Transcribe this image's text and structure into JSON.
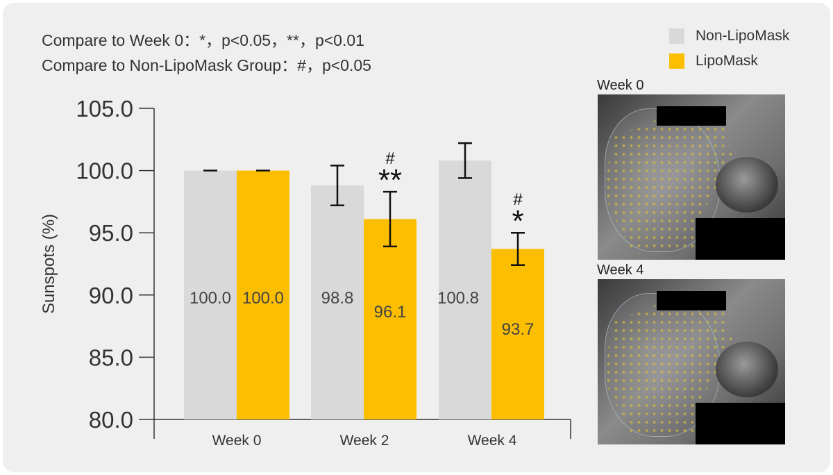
{
  "notes": {
    "line1": "Compare to Week 0：*，p<0.05，**，p<0.01",
    "line2": "Compare to Non-LipoMask Group：#，p<0.05"
  },
  "legend": [
    {
      "label": "Non-LipoMask",
      "color": "#d8d9d8"
    },
    {
      "label": "LipoMask",
      "color": "#fbbe00"
    }
  ],
  "photos": [
    {
      "label": "Week 0"
    },
    {
      "label": "Week 4"
    }
  ],
  "chart_data": {
    "type": "bar",
    "ylabel": "Sunspots (%)",
    "xlabel": "",
    "ylim": [
      80,
      105
    ],
    "yticks": [
      80,
      85,
      90,
      95,
      100,
      105
    ],
    "ytick_labels": [
      "80.0",
      "85.0",
      "90.0",
      "95.0",
      "100.0",
      "105.0"
    ],
    "categories": [
      "Week 0",
      "Week 2",
      "Week 4"
    ],
    "series": [
      {
        "name": "Non-LipoMask",
        "color": "#d8d9d8",
        "values": [
          100.0,
          98.8,
          100.8
        ],
        "value_labels": [
          "100.0",
          "98.8",
          "100.8"
        ],
        "error": [
          0.0,
          1.6,
          1.4
        ],
        "significance": [
          "",
          "",
          ""
        ],
        "significance_group": [
          "",
          "",
          ""
        ]
      },
      {
        "name": "LipoMask",
        "color": "#fbbe00",
        "values": [
          100.0,
          96.1,
          93.7
        ],
        "value_labels": [
          "100.0",
          "96.1",
          "93.7"
        ],
        "error": [
          0.0,
          2.2,
          1.3
        ],
        "significance": [
          "",
          "**",
          "*"
        ],
        "significance_group": [
          "",
          "#",
          "#"
        ]
      }
    ],
    "grid": false,
    "legend_position": "top-right"
  }
}
